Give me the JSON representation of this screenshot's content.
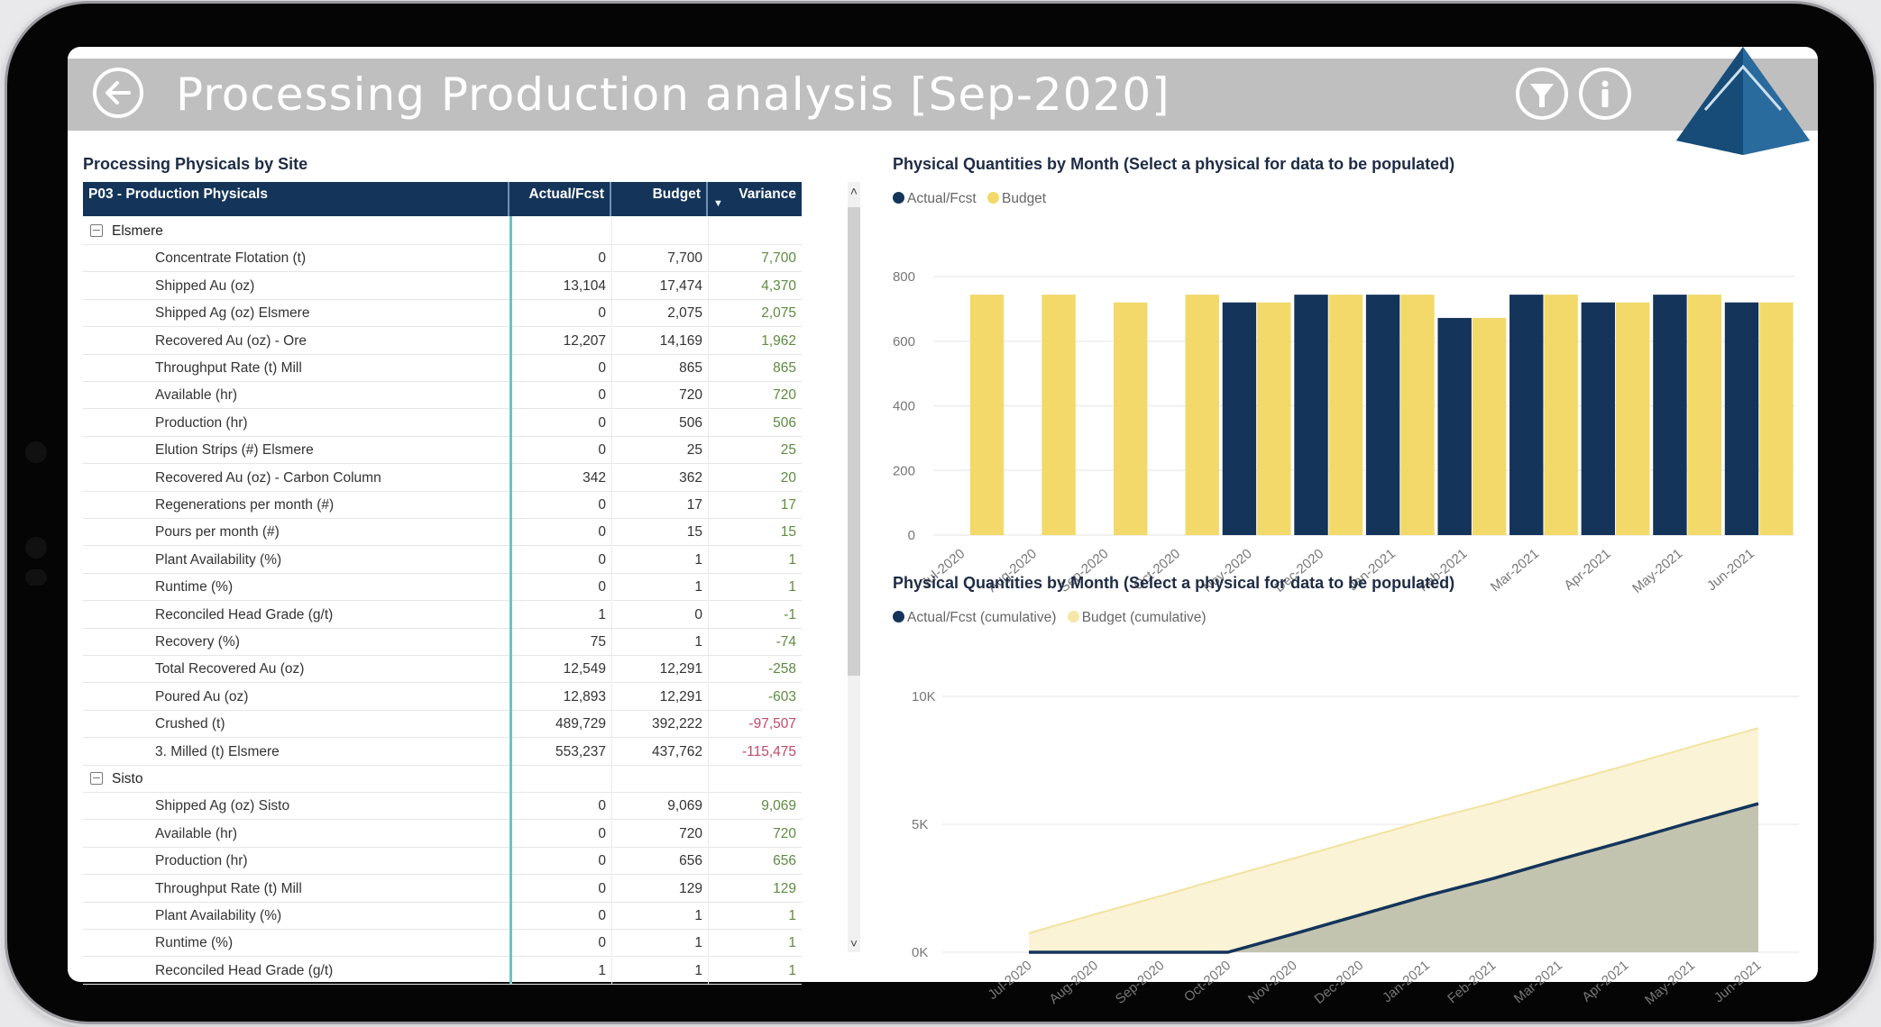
{
  "header": {
    "title": "Processing Production analysis [Sep-2020]",
    "back_icon": "arrow-left-circle-icon",
    "filter_icon": "filter-circle-icon",
    "info_icon": "info-circle-icon",
    "logo": "blue-pyramid-logo"
  },
  "colors": {
    "header_bg": "#bfbfbf",
    "table_header_bg": "#14345a",
    "actual": "#14345a",
    "budget": "#f2d96a",
    "budget_area": "#fbf3d6",
    "actual_area": "#c3c4b0",
    "variance_positive": "#5d8c3e",
    "variance_negative": "#c04a6a",
    "accent_teal": "#6cc4c4"
  },
  "matrix": {
    "title": "Processing Physicals by Site",
    "columns": [
      "P03 - Production Physicals",
      "Actual/Fcst",
      "Budget",
      "Variance"
    ],
    "sort_indicator": "▼",
    "groups": [
      {
        "name": "Elsmere",
        "rows": [
          {
            "label": "Concentrate Flotation (t)",
            "actual": "0",
            "budget": "7,700",
            "variance": "7,700",
            "tone": "pos"
          },
          {
            "label": "Shipped Au (oz)",
            "actual": "13,104",
            "budget": "17,474",
            "variance": "4,370",
            "tone": "pos"
          },
          {
            "label": "Shipped Ag (oz) Elsmere",
            "actual": "0",
            "budget": "2,075",
            "variance": "2,075",
            "tone": "pos"
          },
          {
            "label": "Recovered Au (oz) - Ore",
            "actual": "12,207",
            "budget": "14,169",
            "variance": "1,962",
            "tone": "pos"
          },
          {
            "label": "Throughput Rate (t) Mill",
            "actual": "0",
            "budget": "865",
            "variance": "865",
            "tone": "pos"
          },
          {
            "label": "Available (hr)",
            "actual": "0",
            "budget": "720",
            "variance": "720",
            "tone": "pos"
          },
          {
            "label": "Production (hr)",
            "actual": "0",
            "budget": "506",
            "variance": "506",
            "tone": "pos"
          },
          {
            "label": "Elution Strips (#) Elsmere",
            "actual": "0",
            "budget": "25",
            "variance": "25",
            "tone": "pos"
          },
          {
            "label": "Recovered Au (oz) - Carbon Column",
            "actual": "342",
            "budget": "362",
            "variance": "20",
            "tone": "pos"
          },
          {
            "label": "Regenerations per month (#)",
            "actual": "0",
            "budget": "17",
            "variance": "17",
            "tone": "pos"
          },
          {
            "label": "Pours per month (#)",
            "actual": "0",
            "budget": "15",
            "variance": "15",
            "tone": "pos"
          },
          {
            "label": "Plant Availability (%)",
            "actual": "0",
            "budget": "1",
            "variance": "1",
            "tone": "pos"
          },
          {
            "label": "Runtime (%)",
            "actual": "0",
            "budget": "1",
            "variance": "1",
            "tone": "pos"
          },
          {
            "label": "Reconciled Head Grade (g/t)",
            "actual": "1",
            "budget": "0",
            "variance": "-1",
            "tone": "neg-g"
          },
          {
            "label": "Recovery (%)",
            "actual": "75",
            "budget": "1",
            "variance": "-74",
            "tone": "neg-g"
          },
          {
            "label": "Total Recovered Au (oz)",
            "actual": "12,549",
            "budget": "12,291",
            "variance": "-258",
            "tone": "neg-g"
          },
          {
            "label": "Poured Au (oz)",
            "actual": "12,893",
            "budget": "12,291",
            "variance": "-603",
            "tone": "neg-g"
          },
          {
            "label": "Crushed (t)",
            "actual": "489,729",
            "budget": "392,222",
            "variance": "-97,507",
            "tone": "neg-r"
          },
          {
            "label": "3. Milled (t) Elsmere",
            "actual": "553,237",
            "budget": "437,762",
            "variance": "-115,475",
            "tone": "neg-r"
          }
        ]
      },
      {
        "name": "Sisto",
        "rows": [
          {
            "label": "Shipped Ag (oz) Sisto",
            "actual": "0",
            "budget": "9,069",
            "variance": "9,069",
            "tone": "pos"
          },
          {
            "label": "Available (hr)",
            "actual": "0",
            "budget": "720",
            "variance": "720",
            "tone": "pos"
          },
          {
            "label": "Production (hr)",
            "actual": "0",
            "budget": "656",
            "variance": "656",
            "tone": "pos"
          },
          {
            "label": "Throughput Rate (t) Mill",
            "actual": "0",
            "budget": "129",
            "variance": "129",
            "tone": "pos"
          },
          {
            "label": "Plant Availability (%)",
            "actual": "0",
            "budget": "1",
            "variance": "1",
            "tone": "pos"
          },
          {
            "label": "Runtime (%)",
            "actual": "0",
            "budget": "1",
            "variance": "1",
            "tone": "pos"
          },
          {
            "label": "Reconciled Head Grade (g/t)",
            "actual": "1",
            "budget": "1",
            "variance": "1",
            "tone": "pos"
          }
        ]
      }
    ],
    "scroll_up": "˄",
    "scroll_down": "˅"
  },
  "chart_data": [
    {
      "type": "bar",
      "title": "Physical Quantities by Month (Select a physical for data to be populated)",
      "categories": [
        "Jul-2020",
        "Aug-2020",
        "Sep-2020",
        "Oct-2020",
        "Nov-2020",
        "Dec-2020",
        "Jan-2021",
        "Feb-2021",
        "Mar-2021",
        "Apr-2021",
        "May-2021",
        "Jun-2021"
      ],
      "series": [
        {
          "name": "Actual/Fcst",
          "color": "#14345a",
          "values": [
            0,
            0,
            0,
            0,
            720,
            744,
            744,
            672,
            744,
            720,
            744,
            720
          ]
        },
        {
          "name": "Budget",
          "color": "#f2d96a",
          "values": [
            744,
            744,
            720,
            744,
            720,
            744,
            744,
            672,
            744,
            720,
            744,
            720
          ]
        }
      ],
      "xlabel": "",
      "ylabel": "",
      "yticks": [
        "0",
        "200",
        "400",
        "600",
        "800"
      ],
      "ylim": [
        0,
        800
      ],
      "grid": true,
      "legend_position": "top-left"
    },
    {
      "type": "area",
      "title": "Physical Quantities by Month (Select a physical for data to be populated)",
      "categories": [
        "Jul-2020",
        "Aug-2020",
        "Sep-2020",
        "Oct-2020",
        "Nov-2020",
        "Dec-2020",
        "Jan-2021",
        "Feb-2021",
        "Mar-2021",
        "Apr-2021",
        "May-2021",
        "Jun-2021"
      ],
      "series": [
        {
          "name": "Actual/Fcst (cumulative)",
          "color": "#14345a",
          "values": [
            0,
            0,
            0,
            0,
            720,
            1464,
            2208,
            2880,
            3624,
            4344,
            5088,
            5808
          ]
        },
        {
          "name": "Budget (cumulative)",
          "color": "#f6e7a8",
          "values": [
            744,
            1488,
            2208,
            2952,
            3672,
            4416,
            5160,
            5832,
            6576,
            7296,
            8040,
            8760
          ]
        }
      ],
      "xlabel": "",
      "ylabel": "",
      "yticks": [
        "0K",
        "5K",
        "10K"
      ],
      "ylim": [
        0,
        10000
      ],
      "grid": true,
      "legend_position": "top-left"
    }
  ]
}
